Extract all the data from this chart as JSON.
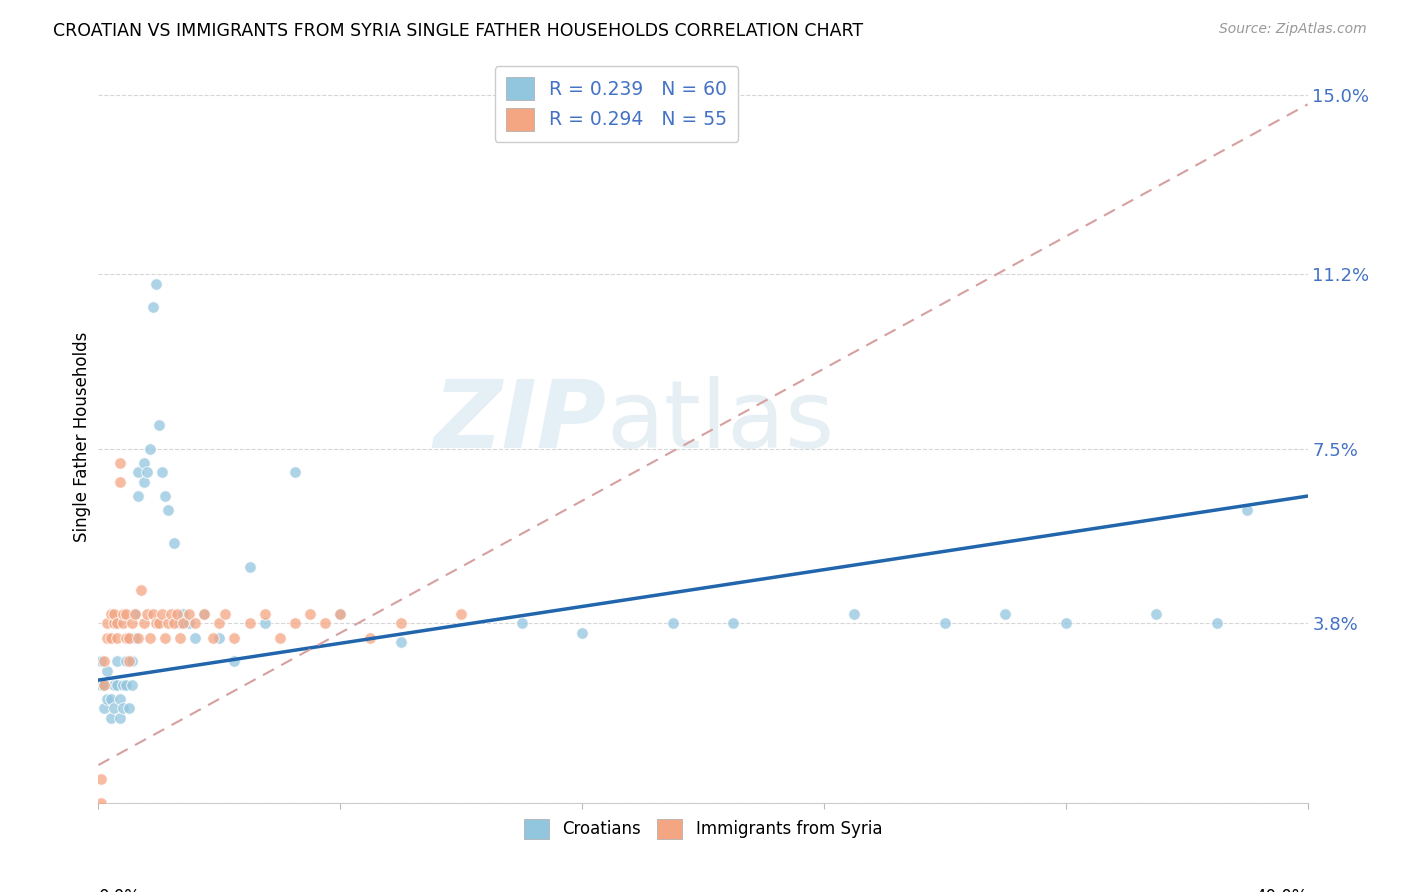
{
  "title": "CROATIAN VS IMMIGRANTS FROM SYRIA SINGLE FATHER HOUSEHOLDS CORRELATION CHART",
  "source": "Source: ZipAtlas.com",
  "ylabel": "Single Father Households",
  "yticks": [
    0.0,
    0.038,
    0.075,
    0.112,
    0.15
  ],
  "ytick_labels": [
    "",
    "3.8%",
    "7.5%",
    "11.2%",
    "15.0%"
  ],
  "xlim": [
    0.0,
    0.4
  ],
  "ylim": [
    0.0,
    0.155
  ],
  "watermark_zip": "ZIP",
  "watermark_atlas": "atlas",
  "legend_r1": "R = 0.239",
  "legend_n1": "N = 60",
  "legend_r2": "R = 0.294",
  "legend_n2": "N = 55",
  "color_croatian": "#92c5de",
  "color_syria": "#f4a582",
  "color_trendline_cro": "#2166ac",
  "color_trendline_syr": "#d6a0a0",
  "scatter_alpha": 0.75,
  "scatter_size": 70,
  "cro_trend_x0": 0.0,
  "cro_trend_y0": 0.026,
  "cro_trend_x1": 0.4,
  "cro_trend_y1": 0.065,
  "syr_trend_x0": 0.0,
  "syr_trend_y0": 0.008,
  "syr_trend_x1": 0.4,
  "syr_trend_y1": 0.148,
  "croatian_x": [
    0.001,
    0.001,
    0.002,
    0.002,
    0.003,
    0.003,
    0.004,
    0.004,
    0.005,
    0.005,
    0.006,
    0.006,
    0.007,
    0.007,
    0.008,
    0.008,
    0.009,
    0.009,
    0.01,
    0.01,
    0.011,
    0.011,
    0.012,
    0.012,
    0.013,
    0.013,
    0.015,
    0.015,
    0.016,
    0.017,
    0.018,
    0.019,
    0.02,
    0.021,
    0.022,
    0.023,
    0.025,
    0.027,
    0.028,
    0.03,
    0.032,
    0.035,
    0.04,
    0.045,
    0.05,
    0.055,
    0.065,
    0.08,
    0.1,
    0.14,
    0.16,
    0.19,
    0.21,
    0.25,
    0.28,
    0.3,
    0.32,
    0.35,
    0.37,
    0.38
  ],
  "croatian_y": [
    0.025,
    0.03,
    0.02,
    0.025,
    0.022,
    0.028,
    0.018,
    0.022,
    0.02,
    0.025,
    0.025,
    0.03,
    0.018,
    0.022,
    0.02,
    0.025,
    0.025,
    0.03,
    0.02,
    0.035,
    0.025,
    0.03,
    0.035,
    0.04,
    0.065,
    0.07,
    0.068,
    0.072,
    0.07,
    0.075,
    0.105,
    0.11,
    0.08,
    0.07,
    0.065,
    0.062,
    0.055,
    0.038,
    0.04,
    0.038,
    0.035,
    0.04,
    0.035,
    0.03,
    0.05,
    0.038,
    0.07,
    0.04,
    0.034,
    0.038,
    0.036,
    0.038,
    0.038,
    0.04,
    0.038,
    0.04,
    0.038,
    0.04,
    0.038,
    0.062
  ],
  "syria_x": [
    0.001,
    0.001,
    0.002,
    0.002,
    0.003,
    0.003,
    0.004,
    0.004,
    0.005,
    0.005,
    0.006,
    0.006,
    0.007,
    0.007,
    0.008,
    0.008,
    0.009,
    0.009,
    0.01,
    0.01,
    0.011,
    0.012,
    0.013,
    0.014,
    0.015,
    0.016,
    0.017,
    0.018,
    0.019,
    0.02,
    0.021,
    0.022,
    0.023,
    0.024,
    0.025,
    0.026,
    0.027,
    0.028,
    0.03,
    0.032,
    0.035,
    0.038,
    0.04,
    0.042,
    0.045,
    0.05,
    0.055,
    0.06,
    0.065,
    0.07,
    0.075,
    0.08,
    0.09,
    0.1,
    0.12
  ],
  "syria_y": [
    0.0,
    0.005,
    0.025,
    0.03,
    0.035,
    0.038,
    0.04,
    0.035,
    0.038,
    0.04,
    0.035,
    0.038,
    0.068,
    0.072,
    0.038,
    0.04,
    0.035,
    0.04,
    0.035,
    0.03,
    0.038,
    0.04,
    0.035,
    0.045,
    0.038,
    0.04,
    0.035,
    0.04,
    0.038,
    0.038,
    0.04,
    0.035,
    0.038,
    0.04,
    0.038,
    0.04,
    0.035,
    0.038,
    0.04,
    0.038,
    0.04,
    0.035,
    0.038,
    0.04,
    0.035,
    0.038,
    0.04,
    0.035,
    0.038,
    0.04,
    0.038,
    0.04,
    0.035,
    0.038,
    0.04
  ]
}
